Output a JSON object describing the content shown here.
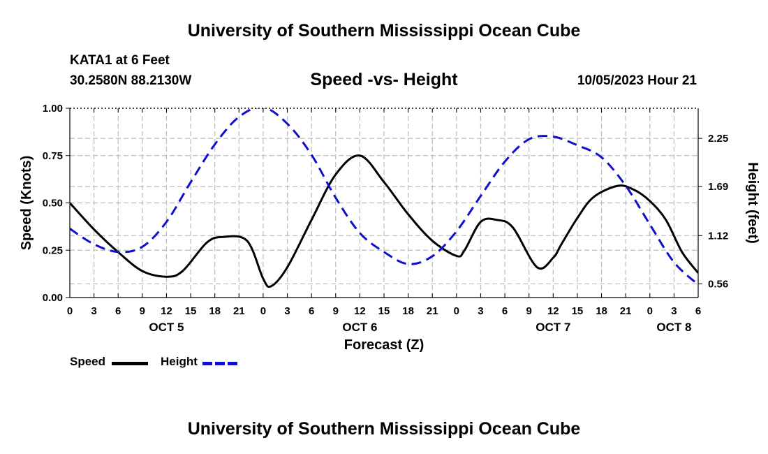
{
  "header": {
    "org_title": "University of Southern Mississippi Ocean Cube",
    "station": "KATA1 at 6 Feet",
    "coords": "30.2580N  88.2130W",
    "chart_title": "Speed -vs- Height",
    "datetime": "10/05/2023 Hour 21"
  },
  "footer": {
    "org_title": "University of Southern Mississippi Ocean Cube"
  },
  "legend": {
    "speed_label": "Speed",
    "height_label": "Height",
    "speed_color": "#000000",
    "height_color": "#1010cc"
  },
  "chart_data": {
    "type": "line",
    "title": "Speed -vs- Height",
    "xlabel": "Forecast (Z)",
    "ylabel_left": "Speed (Knots)",
    "ylabel_right": "Height (feet)",
    "x_hours_range": [
      0,
      78
    ],
    "ylim_left": [
      0,
      1.0
    ],
    "ylim_right": [
      0.4,
      2.6
    ],
    "x_tick_labels": [
      "0",
      "3",
      "6",
      "9",
      "12",
      "15",
      "18",
      "21",
      "0",
      "3",
      "6",
      "9",
      "12",
      "15",
      "18",
      "21",
      "0",
      "3",
      "6",
      "9",
      "12",
      "15",
      "18",
      "21",
      "0",
      "3",
      "6"
    ],
    "day_labels": [
      {
        "label": "OCT 5",
        "hour": 12
      },
      {
        "label": "OCT 6",
        "hour": 36
      },
      {
        "label": "OCT 7",
        "hour": 60
      },
      {
        "label": "OCT 8",
        "hour": 75
      }
    ],
    "y_left_ticks": [
      {
        "value": 0,
        "label": "0.00"
      },
      {
        "value": 0.25,
        "label": "0.25"
      },
      {
        "value": 0.5,
        "label": "0.50"
      },
      {
        "value": 0.75,
        "label": "0.75"
      },
      {
        "value": 1.0,
        "label": "1.00"
      }
    ],
    "y_right_ticks": [
      {
        "value": 0.56,
        "label": "0.56"
      },
      {
        "value": 1.12,
        "label": "1.12"
      },
      {
        "value": 1.69,
        "label": "1.69"
      },
      {
        "value": 2.25,
        "label": "2.25"
      }
    ],
    "series": [
      {
        "name": "Speed",
        "axis": "left",
        "color": "#000000",
        "style": "solid",
        "x": [
          0,
          3,
          6,
          9,
          12,
          14,
          17,
          19,
          22,
          24,
          25,
          27,
          30,
          33,
          36,
          39,
          42,
          45,
          48,
          49,
          51,
          53,
          55,
          58,
          60,
          61,
          63,
          65,
          68,
          70,
          72,
          74,
          76,
          78
        ],
        "y": [
          0.5,
          0.36,
          0.24,
          0.14,
          0.11,
          0.14,
          0.29,
          0.32,
          0.3,
          0.1,
          0.06,
          0.16,
          0.41,
          0.65,
          0.75,
          0.61,
          0.44,
          0.3,
          0.22,
          0.25,
          0.4,
          0.41,
          0.37,
          0.16,
          0.21,
          0.28,
          0.42,
          0.53,
          0.59,
          0.57,
          0.51,
          0.41,
          0.24,
          0.13
        ]
      },
      {
        "name": "Height",
        "axis": "right",
        "color": "#1010cc",
        "style": "dashed",
        "x": [
          0,
          3,
          6,
          9,
          12,
          15,
          18,
          21,
          24,
          27,
          30,
          33,
          36,
          39,
          42,
          45,
          48,
          51,
          54,
          57,
          60,
          63,
          66,
          69,
          72,
          75,
          78
        ],
        "y": [
          1.2,
          1.02,
          0.93,
          0.99,
          1.28,
          1.74,
          2.18,
          2.5,
          2.61,
          2.42,
          2.06,
          1.56,
          1.15,
          0.93,
          0.79,
          0.88,
          1.17,
          1.58,
          1.98,
          2.24,
          2.27,
          2.17,
          2.03,
          1.7,
          1.25,
          0.81,
          0.55
        ]
      }
    ]
  }
}
